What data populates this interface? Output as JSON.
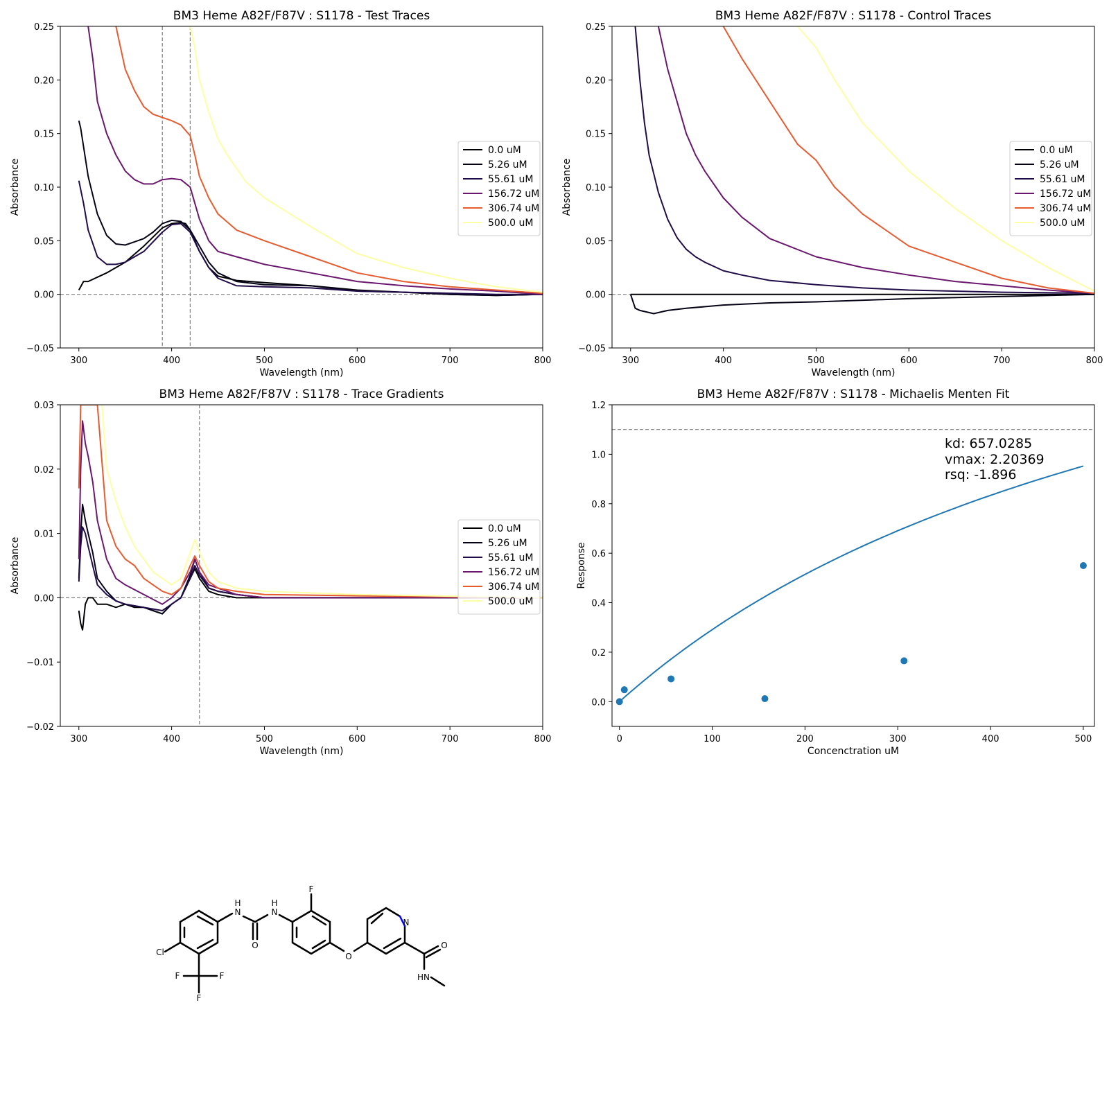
{
  "chart_data": [
    {
      "type": "line",
      "title": "BM3 Heme A82F/F87V : S1178 - Test Traces",
      "xlabel": "Wavelength (nm)",
      "ylabel": "Absorbance",
      "xlim": [
        280,
        800
      ],
      "ylim": [
        -0.05,
        0.25
      ],
      "xticks": [
        300,
        400,
        500,
        600,
        700,
        800
      ],
      "yticks": [
        -0.05,
        0.0,
        0.05,
        0.1,
        0.15,
        0.2,
        0.25
      ],
      "ytick_decimals": 2,
      "legend_position": "right",
      "hlines": [
        0.0
      ],
      "vlines": [
        390,
        420
      ],
      "series": [
        {
          "name": "0.0 uM",
          "color": "#000004",
          "x": [
            300,
            305,
            310,
            330,
            350,
            370,
            390,
            400,
            410,
            415,
            420,
            430,
            440,
            450,
            470,
            500,
            550,
            600,
            650,
            700,
            750,
            800
          ],
          "y": [
            0.004,
            0.012,
            0.012,
            0.02,
            0.03,
            0.045,
            0.062,
            0.066,
            0.067,
            0.066,
            0.06,
            0.04,
            0.025,
            0.017,
            0.013,
            0.011,
            0.008,
            0.004,
            0.002,
            0.0,
            -0.001,
            0.0
          ]
        },
        {
          "name": "5.26 uM",
          "color": "#050417",
          "x": [
            300,
            302,
            310,
            320,
            330,
            340,
            350,
            360,
            370,
            380,
            390,
            400,
            410,
            420,
            430,
            440,
            450,
            470,
            500,
            550,
            600,
            650,
            700,
            750,
            800
          ],
          "y": [
            0.162,
            0.155,
            0.11,
            0.075,
            0.055,
            0.047,
            0.046,
            0.049,
            0.052,
            0.058,
            0.066,
            0.069,
            0.068,
            0.06,
            0.045,
            0.03,
            0.02,
            0.012,
            0.009,
            0.008,
            0.003,
            0.002,
            0.0,
            -0.001,
            0.0
          ]
        },
        {
          "name": "55.61 uM",
          "color": "#1f0c48",
          "x": [
            300,
            305,
            310,
            320,
            330,
            340,
            350,
            370,
            390,
            400,
            410,
            420,
            430,
            440,
            450,
            470,
            500,
            550,
            600,
            650,
            700,
            750,
            800
          ],
          "y": [
            0.106,
            0.085,
            0.06,
            0.035,
            0.028,
            0.028,
            0.03,
            0.04,
            0.058,
            0.065,
            0.066,
            0.058,
            0.04,
            0.025,
            0.015,
            0.008,
            0.007,
            0.006,
            0.003,
            0.002,
            0.001,
            0.0,
            0.0
          ]
        },
        {
          "name": "156.72 uM",
          "color": "#6a176e",
          "x": [
            310,
            315,
            320,
            330,
            340,
            350,
            360,
            370,
            380,
            390,
            400,
            410,
            420,
            425,
            430,
            440,
            450,
            470,
            500,
            550,
            600,
            650,
            700,
            750,
            800
          ],
          "y": [
            0.25,
            0.22,
            0.18,
            0.15,
            0.13,
            0.115,
            0.107,
            0.103,
            0.103,
            0.107,
            0.108,
            0.107,
            0.1,
            0.085,
            0.07,
            0.05,
            0.04,
            0.035,
            0.028,
            0.02,
            0.012,
            0.008,
            0.005,
            0.003,
            0.0
          ]
        },
        {
          "name": "306.74 uM",
          "color": "#e55c30",
          "x": [
            340,
            345,
            350,
            360,
            370,
            380,
            390,
            400,
            410,
            420,
            425,
            430,
            440,
            450,
            470,
            500,
            550,
            600,
            650,
            700,
            750,
            800
          ],
          "y": [
            0.25,
            0.23,
            0.21,
            0.19,
            0.175,
            0.168,
            0.165,
            0.162,
            0.158,
            0.148,
            0.13,
            0.11,
            0.09,
            0.075,
            0.06,
            0.05,
            0.035,
            0.02,
            0.012,
            0.007,
            0.004,
            0.001
          ]
        },
        {
          "name": "500.0 uM",
          "color": "#fcffa4",
          "x": [
            420,
            425,
            430,
            440,
            450,
            460,
            480,
            500,
            550,
            600,
            650,
            700,
            750,
            800
          ],
          "y": [
            0.25,
            0.23,
            0.2,
            0.17,
            0.145,
            0.13,
            0.105,
            0.09,
            0.063,
            0.038,
            0.025,
            0.015,
            0.007,
            0.002
          ]
        }
      ]
    },
    {
      "type": "line",
      "title": "BM3 Heme A82F/F87V : S1178 - Control Traces",
      "xlabel": "Wavelength (nm)",
      "ylabel": "Absorbance",
      "xlim": [
        280,
        800
      ],
      "ylim": [
        -0.05,
        0.25
      ],
      "xticks": [
        300,
        400,
        500,
        600,
        700,
        800
      ],
      "yticks": [
        -0.05,
        0.0,
        0.05,
        0.1,
        0.15,
        0.2,
        0.25
      ],
      "ytick_decimals": 2,
      "legend_position": "right",
      "hlines": [
        0.0
      ],
      "vlines": [],
      "series": [
        {
          "name": "0.0 uM",
          "color": "#000004",
          "x": [
            300,
            800
          ],
          "y": [
            0.0,
            0.0
          ]
        },
        {
          "name": "5.26 uM",
          "color": "#050417",
          "x": [
            300,
            305,
            310,
            325,
            340,
            360,
            400,
            450,
            500,
            600,
            700,
            800
          ],
          "y": [
            0.0,
            -0.013,
            -0.015,
            -0.018,
            -0.015,
            -0.013,
            -0.01,
            -0.008,
            -0.007,
            -0.004,
            -0.002,
            0.0
          ]
        },
        {
          "name": "55.61 uM",
          "color": "#1f0c48",
          "x": [
            305,
            310,
            315,
            320,
            330,
            340,
            350,
            360,
            370,
            380,
            400,
            420,
            450,
            500,
            550,
            600,
            700,
            800
          ],
          "y": [
            0.25,
            0.2,
            0.16,
            0.13,
            0.095,
            0.07,
            0.053,
            0.042,
            0.035,
            0.03,
            0.022,
            0.018,
            0.013,
            0.009,
            0.006,
            0.004,
            0.002,
            0.001
          ]
        },
        {
          "name": "156.72 uM",
          "color": "#6a176e",
          "x": [
            330,
            340,
            350,
            360,
            370,
            380,
            400,
            420,
            450,
            500,
            550,
            600,
            650,
            700,
            750,
            800
          ],
          "y": [
            0.25,
            0.21,
            0.18,
            0.15,
            0.13,
            0.115,
            0.09,
            0.072,
            0.052,
            0.035,
            0.025,
            0.018,
            0.012,
            0.008,
            0.004,
            0.001
          ]
        },
        {
          "name": "306.74 uM",
          "color": "#e55c30",
          "x": [
            400,
            420,
            450,
            480,
            500,
            520,
            550,
            600,
            650,
            700,
            750,
            800
          ],
          "y": [
            0.25,
            0.22,
            0.18,
            0.14,
            0.125,
            0.1,
            0.075,
            0.045,
            0.03,
            0.015,
            0.006,
            0.001
          ]
        },
        {
          "name": "500.0 uM",
          "color": "#fcffa4",
          "x": [
            480,
            500,
            520,
            550,
            600,
            650,
            700,
            750,
            800
          ],
          "y": [
            0.25,
            0.23,
            0.2,
            0.16,
            0.115,
            0.08,
            0.05,
            0.025,
            0.003
          ]
        }
      ]
    },
    {
      "type": "line",
      "title": "BM3 Heme A82F/F87V : S1178 - Trace Gradients",
      "xlabel": "Wavelength (nm)",
      "ylabel": "Absorbance",
      "xlim": [
        280,
        800
      ],
      "ylim": [
        -0.02,
        0.03
      ],
      "xticks": [
        300,
        400,
        500,
        600,
        700,
        800
      ],
      "yticks": [
        -0.02,
        -0.01,
        0.0,
        0.01,
        0.02,
        0.03
      ],
      "ytick_decimals": 2,
      "legend_position": "right",
      "hlines": [
        0.0
      ],
      "vlines": [
        430
      ],
      "series": [
        {
          "name": "0.0 uM",
          "color": "#000004",
          "x": [
            300,
            302,
            304,
            307,
            310,
            315,
            320,
            330,
            340,
            350,
            360,
            370,
            380,
            390,
            400,
            410,
            420,
            425,
            430,
            440,
            450,
            470,
            500,
            550,
            600,
            700,
            800
          ],
          "y": [
            -0.002,
            -0.004,
            -0.005,
            -0.001,
            0.0,
            0.0,
            -0.001,
            -0.001,
            -0.0015,
            -0.001,
            -0.0015,
            -0.0015,
            -0.002,
            -0.0025,
            -0.001,
            0.0,
            0.003,
            0.0045,
            0.003,
            0.001,
            0.0005,
            0.0,
            0.0,
            0.0,
            0.0,
            0.0,
            0.0
          ]
        },
        {
          "name": "5.26 uM",
          "color": "#050417",
          "x": [
            300,
            302,
            304,
            307,
            310,
            315,
            320,
            330,
            340,
            350,
            370,
            390,
            400,
            410,
            420,
            425,
            430,
            440,
            450,
            470,
            500,
            600,
            800
          ],
          "y": [
            0.003,
            0.01,
            0.0145,
            0.012,
            0.01,
            0.007,
            0.003,
            0.001,
            -0.0005,
            -0.001,
            -0.0015,
            -0.0025,
            -0.001,
            0.0,
            0.0035,
            0.006,
            0.004,
            0.0015,
            0.001,
            0.0005,
            0.0,
            0.0,
            0.0
          ]
        },
        {
          "name": "55.61 uM",
          "color": "#1f0c48",
          "x": [
            300,
            302,
            304,
            307,
            310,
            315,
            320,
            330,
            340,
            350,
            370,
            390,
            400,
            410,
            420,
            425,
            430,
            440,
            450,
            470,
            500,
            600,
            800
          ],
          "y": [
            0.0025,
            0.008,
            0.011,
            0.01,
            0.008,
            0.005,
            0.002,
            0.0005,
            -0.0005,
            -0.001,
            -0.0015,
            -0.002,
            -0.001,
            0.0,
            0.003,
            0.005,
            0.0035,
            0.0015,
            0.001,
            0.0005,
            0.0,
            0.0,
            0.0
          ]
        },
        {
          "name": "156.72 uM",
          "color": "#6a176e",
          "x": [
            300,
            302,
            304,
            307,
            310,
            315,
            320,
            330,
            340,
            350,
            370,
            390,
            400,
            410,
            420,
            425,
            430,
            440,
            450,
            470,
            500,
            600,
            800
          ],
          "y": [
            0.006,
            0.02,
            0.0275,
            0.024,
            0.022,
            0.018,
            0.012,
            0.006,
            0.003,
            0.002,
            0.0005,
            -0.001,
            0.0,
            0.0015,
            0.004,
            0.006,
            0.004,
            0.002,
            0.0015,
            0.0005,
            0.0,
            0.0,
            0.0
          ]
        },
        {
          "name": "306.74 uM",
          "color": "#e55c30",
          "x": [
            300,
            302,
            305,
            310,
            315,
            320,
            330,
            340,
            350,
            360,
            370,
            380,
            390,
            400,
            410,
            420,
            425,
            430,
            440,
            450,
            470,
            500,
            600,
            800
          ],
          "y": [
            0.017,
            0.03,
            0.03,
            0.03,
            0.03,
            0.03,
            0.012,
            0.008,
            0.006,
            0.005,
            0.003,
            0.002,
            0.001,
            0.0005,
            0.0015,
            0.005,
            0.0065,
            0.005,
            0.0025,
            0.0015,
            0.001,
            0.0005,
            0.0003,
            0.0
          ]
        },
        {
          "name": "500.0 uM",
          "color": "#fcffa4",
          "x": [
            325,
            330,
            340,
            350,
            360,
            370,
            380,
            390,
            400,
            410,
            420,
            425,
            430,
            440,
            450,
            470,
            500,
            600,
            800
          ],
          "y": [
            0.03,
            0.02,
            0.015,
            0.011,
            0.008,
            0.006,
            0.004,
            0.003,
            0.002,
            0.003,
            0.007,
            0.009,
            0.007,
            0.004,
            0.0025,
            0.0015,
            0.001,
            0.0005,
            0.0
          ]
        }
      ]
    },
    {
      "type": "scatter",
      "title": "BM3 Heme A82F/F87V : S1178 - Michaelis Menten Fit",
      "xlabel": "Concenctration uM",
      "ylabel": "Response",
      "xlim": [
        -8,
        512
      ],
      "ylim": [
        -0.1,
        1.2
      ],
      "xticks": [
        0,
        100,
        200,
        300,
        400,
        500
      ],
      "yticks": [
        0.0,
        0.2,
        0.4,
        0.6,
        0.8,
        1.0,
        1.2
      ],
      "ytick_decimals": 1,
      "hlines": [
        1.1
      ],
      "color": "#1f77b4",
      "points": {
        "x": [
          0.0,
          5.26,
          55.61,
          156.72,
          306.74,
          500.0
        ],
        "y": [
          0.0,
          0.048,
          0.092,
          0.012,
          0.165,
          0.55
        ]
      },
      "fit": {
        "kd": 657.0285,
        "vmax": 2.20369
      },
      "annotation": [
        "kd: 657.0285",
        "vmax: 2.20369",
        "rsq: -1.896"
      ]
    }
  ],
  "molecule": {
    "atom_labels": {
      "cl": "Cl",
      "f_cf3_left": "F",
      "f_cf3_right": "F",
      "f_cf3_bottom": "F",
      "nh1_h": "H",
      "nh1_n": "N",
      "nh2_h": "H",
      "nh2_n": "N",
      "o_urea": "O",
      "f_ring": "F",
      "o_ether": "O",
      "n_pyridine": "N",
      "o_amide": "O",
      "hn_amide": "HN"
    },
    "colors": {
      "carbon": "#000000",
      "nitrogen": "#0000ff",
      "oxygen": "#ff0000",
      "fluorine": "#33cccc",
      "chlorine": "#00cc00"
    }
  }
}
